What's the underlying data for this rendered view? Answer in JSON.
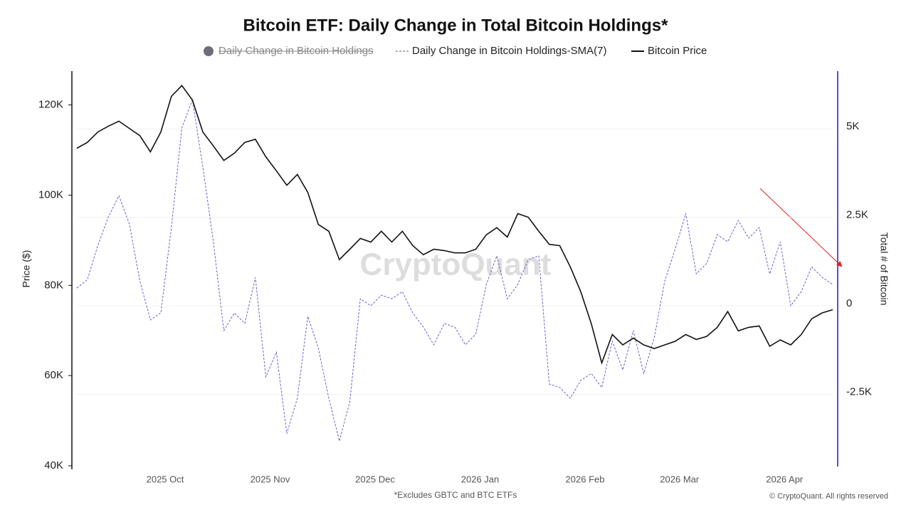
{
  "chart_data": {
    "type": "line",
    "title": "Bitcoin ETF: Daily Change in Total Bitcoin Holdings*",
    "y_label": "Price ($)",
    "y2_label": "Total # of Bitcoin",
    "footnote": "*Excludes GBTC and BTC ETFs",
    "credit": "© CryptoQuant. All rights reserved",
    "watermark": "CryptoQuant",
    "categories": [
      null,
      null,
      null,
      null,
      null,
      null,
      null,
      null,
      "2025 Oct",
      null,
      null,
      null,
      null,
      null,
      null,
      null,
      null,
      null,
      "2025 Nov",
      null,
      null,
      null,
      null,
      null,
      null,
      null,
      null,
      null,
      "2025 Dec",
      null,
      null,
      null,
      null,
      null,
      null,
      null,
      null,
      null,
      "2026 Jan",
      null,
      null,
      null,
      null,
      null,
      null,
      null,
      null,
      null,
      "2026 Feb",
      null,
      null,
      null,
      null,
      null,
      null,
      null,
      null,
      "2026 Mar",
      null,
      null,
      null,
      null,
      null,
      null,
      null,
      null,
      null,
      "2026 Apr",
      null,
      null,
      null,
      null,
      null
    ],
    "ylim": [
      40000,
      127500
    ],
    "yticks": [
      {
        "value": 40000,
        "label": "40K"
      },
      {
        "value": 60000,
        "label": "60K"
      },
      {
        "value": 80000,
        "label": "80K"
      },
      {
        "value": 100000,
        "label": "100K"
      },
      {
        "value": 120000,
        "label": "120K"
      }
    ],
    "y2lim": [
      -4520,
      6630
    ],
    "y2ticks": [
      {
        "value": -2500,
        "label": "-2.5K"
      },
      0,
      {
        "value": 2500,
        "label": "2.5K"
      },
      {
        "value": 5000,
        "label": "5K"
      }
    ],
    "grid": true,
    "legend": "top",
    "series": [
      {
        "name": "Daily Change in Bitcoin Holdings",
        "color": "#6e6e78",
        "visible": false
      },
      {
        "name": "Daily Change in Bitcoin Holdings-SMA(7)",
        "color": "#5b4fc9",
        "axis": "y2",
        "dashed": true,
        "values": [
          500,
          740,
          1710,
          2510,
          3110,
          2310,
          700,
          -400,
          -200,
          2210,
          5020,
          5820,
          3920,
          1810,
          -700,
          -200,
          -500,
          800,
          -2010,
          -1310,
          -3610,
          -2610,
          -300,
          -1200,
          -2610,
          -3820,
          -2710,
          200,
          0,
          300,
          200,
          400,
          -200,
          -600,
          -1100,
          -500,
          -600,
          -1100,
          -800,
          600,
          1410,
          200,
          600,
          1310,
          1410,
          -2210,
          -2310,
          -2610,
          -2110,
          -1910,
          -2310,
          -1000,
          -1810,
          -700,
          -1910,
          -900,
          700,
          1610,
          2610,
          900,
          1200,
          2010,
          1810,
          2410,
          1910,
          2210,
          900,
          1810,
          0,
          400,
          1100,
          800,
          600
        ]
      },
      {
        "name": "Bitcoin Price",
        "color": "#111111",
        "values": [
          110400,
          111700,
          114000,
          115300,
          116400,
          114800,
          113200,
          109600,
          114000,
          121900,
          124300,
          121100,
          114000,
          110900,
          107700,
          109300,
          111700,
          112400,
          108500,
          105400,
          102200,
          104600,
          100600,
          93500,
          92000,
          85700,
          88000,
          90400,
          89600,
          92000,
          89600,
          92000,
          88800,
          86800,
          88000,
          87700,
          87200,
          87200,
          88000,
          91200,
          92800,
          90700,
          95900,
          95100,
          92000,
          89100,
          88800,
          84100,
          78600,
          71500,
          62800,
          69100,
          66800,
          68300,
          66800,
          66000,
          66800,
          67600,
          69100,
          68000,
          68700,
          70700,
          74200,
          69900,
          70700,
          71000,
          66500,
          67900,
          66800,
          69100,
          72600,
          73900,
          74600
        ]
      }
    ]
  }
}
